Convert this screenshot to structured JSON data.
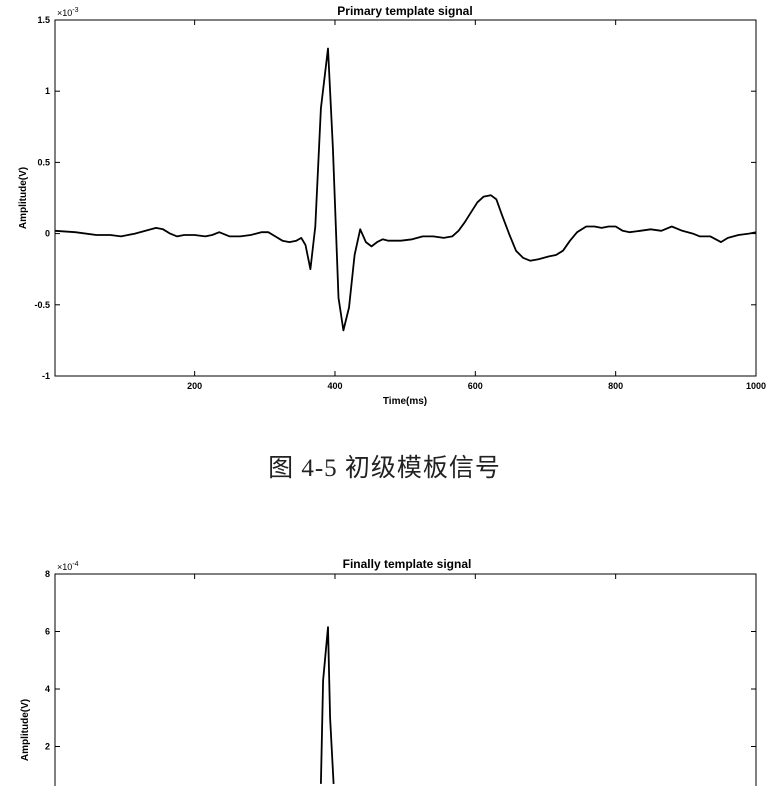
{
  "caption": "图 4-5  初级模板信号",
  "chart_data": [
    {
      "type": "line",
      "title": "Primary template signal",
      "xlabel": "Time(ms)",
      "ylabel": "Amplitude(V)",
      "y_multiplier": "×10^-3",
      "xlim": [
        1,
        1000
      ],
      "ylim": [
        -1,
        1.5
      ],
      "xticks": [
        200,
        400,
        600,
        800,
        1000
      ],
      "yticks": [
        -1,
        -0.5,
        0,
        0.5,
        1,
        1.5
      ],
      "ytick_labels": [
        "-1",
        "-0.5",
        "0",
        "0.5",
        "1",
        "1.5"
      ],
      "grid": false,
      "series": [
        {
          "color": "#000000",
          "x": [
            1,
            30,
            60,
            80,
            95,
            115,
            130,
            145,
            155,
            165,
            175,
            185,
            200,
            215,
            225,
            235,
            250,
            265,
            280,
            295,
            305,
            315,
            325,
            335,
            345,
            352,
            358,
            365,
            372,
            380,
            390,
            397,
            405,
            412,
            420,
            428,
            436,
            444,
            452,
            460,
            468,
            476,
            484,
            494,
            510,
            525,
            540,
            555,
            567,
            576,
            585,
            594,
            603,
            612,
            622,
            630,
            638,
            648,
            658,
            668,
            678,
            690,
            705,
            715,
            725,
            735,
            745,
            758,
            770,
            780,
            790,
            800,
            810,
            820,
            835,
            850,
            865,
            880,
            895,
            910,
            920,
            935,
            950,
            960,
            975,
            990,
            1000
          ],
          "y": [
            0.02,
            0.01,
            -0.01,
            -0.01,
            -0.02,
            0.0,
            0.02,
            0.04,
            0.03,
            0.0,
            -0.02,
            -0.01,
            -0.01,
            -0.02,
            -0.01,
            0.01,
            -0.02,
            -0.02,
            -0.01,
            0.01,
            0.01,
            -0.02,
            -0.05,
            -0.06,
            -0.05,
            -0.03,
            -0.08,
            -0.25,
            0.05,
            0.88,
            1.3,
            0.6,
            -0.45,
            -0.68,
            -0.52,
            -0.15,
            0.03,
            -0.06,
            -0.09,
            -0.06,
            -0.04,
            -0.05,
            -0.05,
            -0.05,
            -0.04,
            -0.02,
            -0.02,
            -0.03,
            -0.02,
            0.02,
            0.08,
            0.15,
            0.22,
            0.26,
            0.27,
            0.24,
            0.13,
            0.0,
            -0.12,
            -0.17,
            -0.19,
            -0.18,
            -0.16,
            -0.15,
            -0.12,
            -0.05,
            0.01,
            0.05,
            0.05,
            0.04,
            0.05,
            0.05,
            0.02,
            0.01,
            0.02,
            0.03,
            0.02,
            0.05,
            0.02,
            0.0,
            -0.02,
            -0.02,
            -0.06,
            -0.03,
            -0.01,
            0.0,
            0.01
          ]
        }
      ]
    },
    {
      "type": "line",
      "title": "Finally template signal",
      "xlabel": "",
      "ylabel": "Amplitude(V)",
      "y_multiplier": "×10^-4",
      "xlim": [
        1,
        1000
      ],
      "ylim": [
        0,
        8
      ],
      "yticks": [
        2,
        4,
        6,
        8
      ],
      "ytick_labels": [
        "2",
        "4",
        "6",
        "8"
      ],
      "grid": false,
      "series": [
        {
          "color": "#000000",
          "x": [
            380,
            383,
            390,
            393,
            398
          ],
          "y": [
            0.7,
            4.3,
            6.15,
            3.0,
            0.7
          ]
        }
      ]
    }
  ]
}
